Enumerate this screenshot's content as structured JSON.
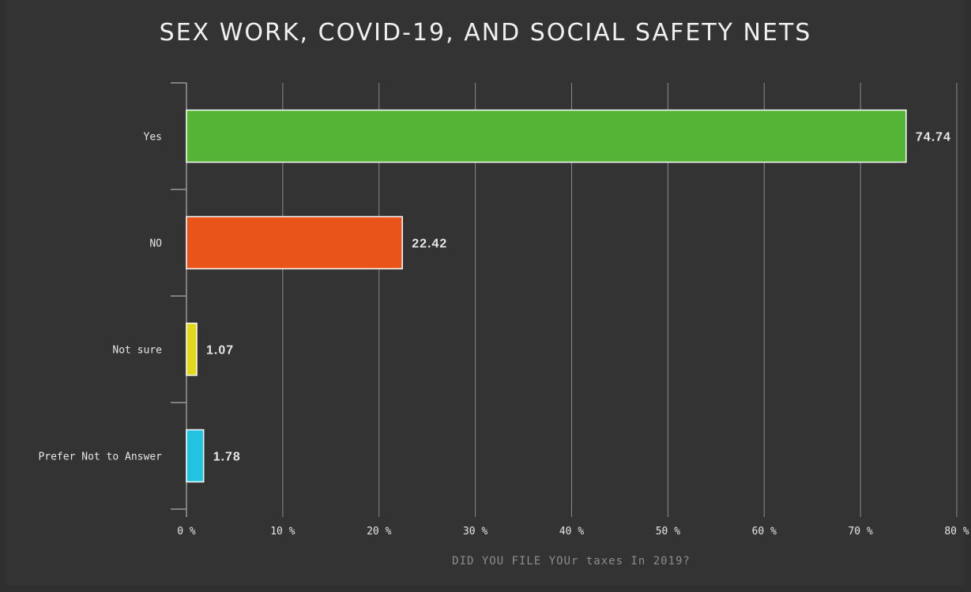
{
  "chart_data": {
    "type": "bar",
    "orientation": "horizontal",
    "title": "SEX WORK, COVID-19, AND SOCIAL SAFETY NETS",
    "xlabel": "DID YOU FILE YOUr taxes In 2019?",
    "ylabel": "",
    "categories": [
      "Yes",
      "NO",
      "Not sure",
      "Prefer Not to Answer"
    ],
    "values": [
      74.74,
      22.42,
      1.07,
      1.78
    ],
    "value_labels": [
      "74.74",
      "22.42",
      "1.07",
      "1.78"
    ],
    "colors": [
      "#54b435",
      "#e8541a",
      "#e3d91b",
      "#22c3e0"
    ],
    "xlim": [
      0,
      80
    ],
    "xticks": [
      0,
      10,
      20,
      30,
      40,
      50,
      60,
      70,
      80
    ],
    "xtick_labels": [
      "0 %",
      "10 %",
      "20 %",
      "30 %",
      "40 %",
      "50 %",
      "60 %",
      "70 %",
      "80 %"
    ],
    "grid": true,
    "legend": "none"
  }
}
